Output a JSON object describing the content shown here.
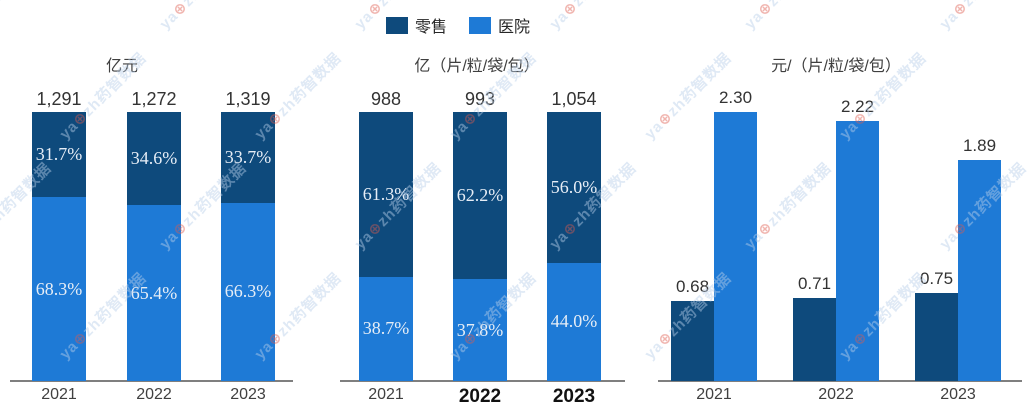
{
  "legend": {
    "position": "top",
    "items": [
      {
        "label": "零售",
        "color": "#0e4a7c"
      },
      {
        "label": "医院",
        "color": "#1e7ad6"
      }
    ]
  },
  "watermark": {
    "prefix": "ya",
    "dot": "⊕",
    "suffix": "zh药智数据"
  },
  "chart_data": [
    {
      "type": "bar",
      "subtype": "stacked-percent",
      "title": "亿元",
      "categories": [
        "2021",
        "2022",
        "2023"
      ],
      "bold_categories": [
        false,
        false,
        false
      ],
      "totals": [
        "1,291",
        "1,272",
        "1,319"
      ],
      "series": [
        {
          "name": "零售",
          "color": "#0e4a7c",
          "values": [
            31.7,
            34.6,
            33.7
          ],
          "labels": [
            "31.7%",
            "34.6%",
            "33.7%"
          ]
        },
        {
          "name": "医院",
          "color": "#1e7ad6",
          "values": [
            68.3,
            65.4,
            66.3
          ],
          "labels": [
            "68.3%",
            "65.4%",
            "66.3%"
          ]
        }
      ],
      "xlabel": "",
      "ylabel": ""
    },
    {
      "type": "bar",
      "subtype": "stacked-percent",
      "title": "亿（片/粒/袋/包）",
      "categories": [
        "2021",
        "2022",
        "2023"
      ],
      "bold_categories": [
        false,
        true,
        true
      ],
      "totals": [
        "988",
        "993",
        "1,054"
      ],
      "series": [
        {
          "name": "零售",
          "color": "#0e4a7c",
          "values": [
            61.3,
            62.2,
            56.0
          ],
          "labels": [
            "61.3%",
            "62.2%",
            "56.0%"
          ]
        },
        {
          "name": "医院",
          "color": "#1e7ad6",
          "values": [
            38.7,
            37.8,
            44.0
          ],
          "labels": [
            "38.7%",
            "37.8%",
            "44.0%"
          ]
        }
      ],
      "xlabel": "",
      "ylabel": ""
    },
    {
      "type": "bar",
      "subtype": "grouped",
      "title": "元/（片/粒/袋/包）",
      "categories": [
        "2021",
        "2022",
        "2023"
      ],
      "bold_categories": [
        false,
        false,
        false
      ],
      "series": [
        {
          "name": "零售",
          "color": "#0e4a7c",
          "values": [
            0.68,
            0.71,
            0.75
          ],
          "labels": [
            "0.68",
            "0.71",
            "0.75"
          ]
        },
        {
          "name": "医院",
          "color": "#1e7ad6",
          "values": [
            2.3,
            2.22,
            1.89
          ],
          "labels": [
            "2.30",
            "2.22",
            "1.89"
          ]
        }
      ],
      "ylim": [
        0,
        2.3
      ],
      "xlabel": "",
      "ylabel": ""
    }
  ]
}
